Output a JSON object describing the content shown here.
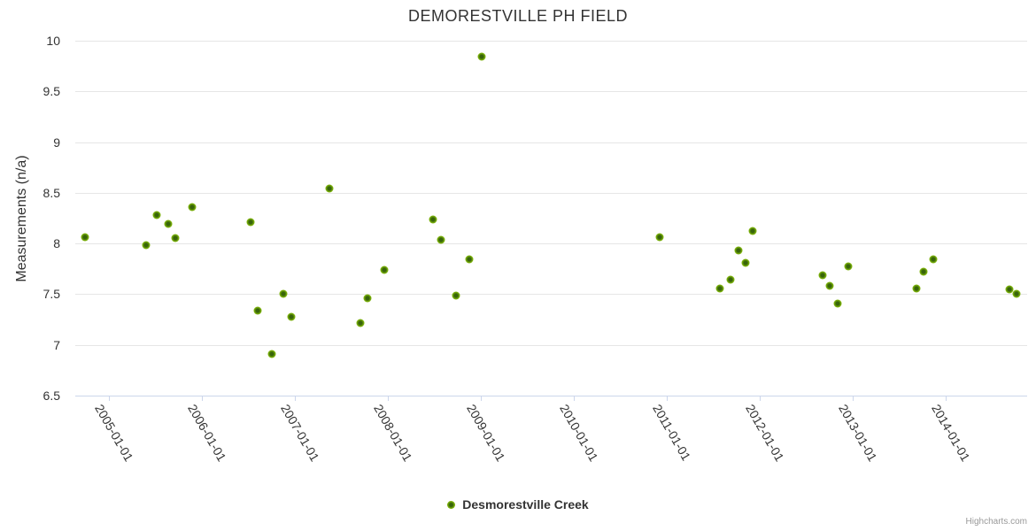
{
  "credits": {
    "label": "Highcharts.com"
  },
  "colors": {
    "marker": "#7db30a",
    "marker_core": "#38650a",
    "gridline": "#e6e6e6",
    "axis_line": "#ccd6eb",
    "text": "#333333",
    "credits_text": "#999999"
  },
  "chart_data": {
    "type": "scatter",
    "title": "DEMORESTVILLE PH FIELD",
    "xlabel": "",
    "ylabel": "Measurements (n/a)",
    "ylim": [
      6.5,
      10
    ],
    "y_ticks": [
      6.5,
      7,
      7.5,
      8,
      8.5,
      9,
      9.5,
      10
    ],
    "x_tick_labels": [
      "2005-01-01",
      "2006-01-01",
      "2007-01-01",
      "2008-01-01",
      "2009-01-01",
      "2010-01-01",
      "2011-01-01",
      "2012-01-01",
      "2013-01-01",
      "2014-01-01"
    ],
    "grid": true,
    "legend_position": "bottom",
    "series": [
      {
        "name": "Desmorestville Creek",
        "color": "#7db30a",
        "data": [
          [
            "2004-09-28",
            8.06
          ],
          [
            "2005-05-26",
            7.98
          ],
          [
            "2005-07-07",
            8.28
          ],
          [
            "2005-08-21",
            8.19
          ],
          [
            "2005-09-18",
            8.05
          ],
          [
            "2005-11-23",
            8.36
          ],
          [
            "2006-07-10",
            8.21
          ],
          [
            "2006-08-07",
            7.34
          ],
          [
            "2006-10-02",
            6.91
          ],
          [
            "2006-11-16",
            7.5
          ],
          [
            "2006-12-17",
            7.28
          ],
          [
            "2007-05-16",
            8.54
          ],
          [
            "2007-09-14",
            7.22
          ],
          [
            "2007-10-12",
            7.46
          ],
          [
            "2007-12-17",
            7.74
          ],
          [
            "2008-06-25",
            8.24
          ],
          [
            "2008-07-27",
            8.04
          ],
          [
            "2008-09-24",
            7.49
          ],
          [
            "2008-11-18",
            7.84
          ],
          [
            "2009-01-03",
            9.84
          ],
          [
            "2010-12-03",
            8.06
          ],
          [
            "2011-07-27",
            7.56
          ],
          [
            "2011-09-07",
            7.64
          ],
          [
            "2011-10-09",
            7.93
          ],
          [
            "2011-11-05",
            7.81
          ],
          [
            "2011-12-03",
            8.12
          ],
          [
            "2012-09-03",
            7.69
          ],
          [
            "2012-10-01",
            7.58
          ],
          [
            "2012-11-01",
            7.41
          ],
          [
            "2012-12-13",
            7.77
          ],
          [
            "2013-09-07",
            7.56
          ],
          [
            "2013-10-05",
            7.72
          ],
          [
            "2013-11-12",
            7.84
          ],
          [
            "2014-09-07",
            7.55
          ],
          [
            "2014-10-05",
            7.5
          ]
        ]
      }
    ]
  }
}
